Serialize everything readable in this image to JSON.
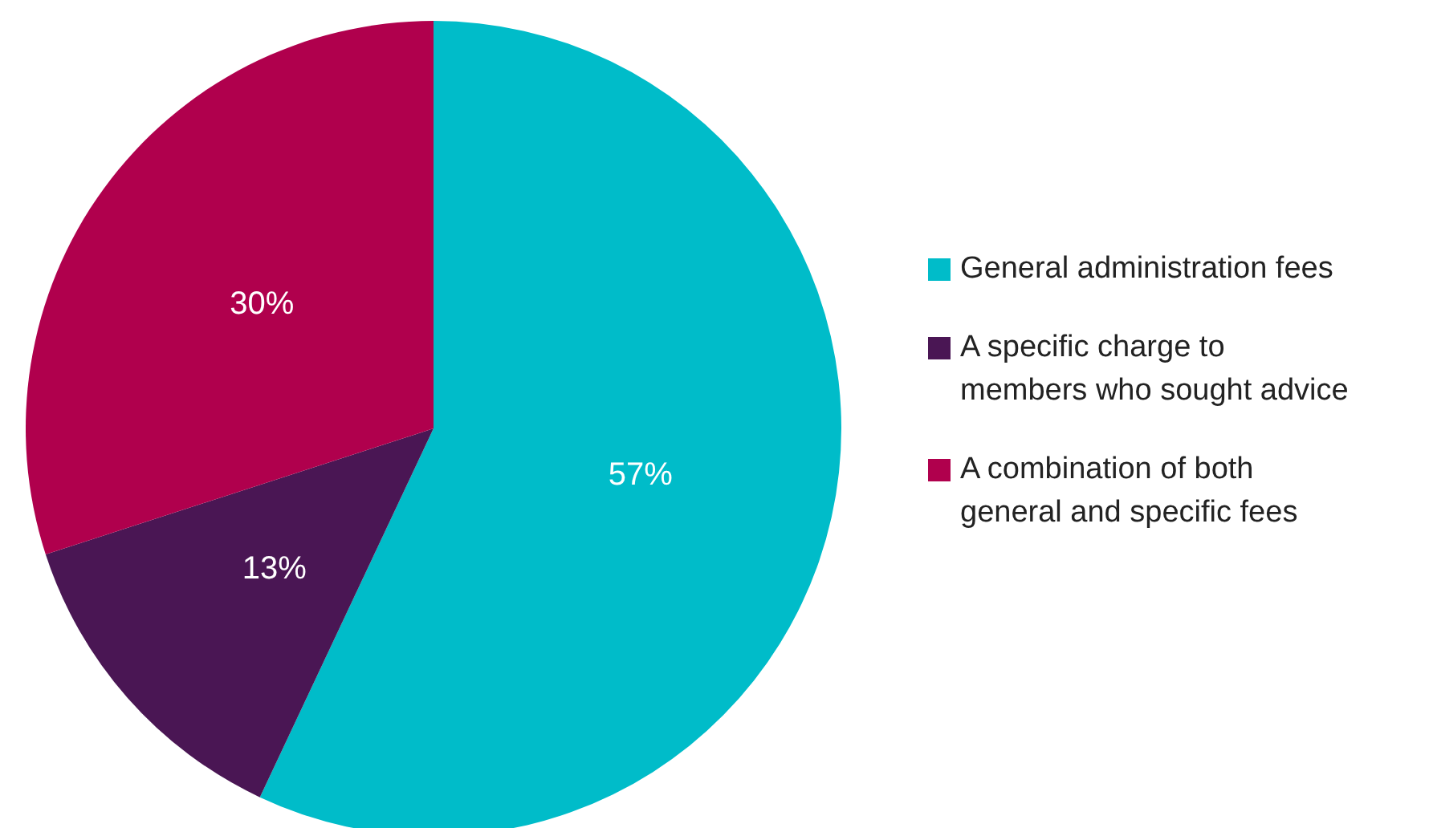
{
  "chart_data": {
    "type": "pie",
    "categories": [
      "General administration fees",
      "A specific charge to members who sought advice",
      "A combination of both general and specific fees"
    ],
    "values": [
      57,
      13,
      30
    ],
    "colors": [
      "#00bcc9",
      "#4a1654",
      "#b0004d"
    ],
    "value_labels": [
      "57%",
      "13%",
      "30%"
    ],
    "legend": "right"
  }
}
